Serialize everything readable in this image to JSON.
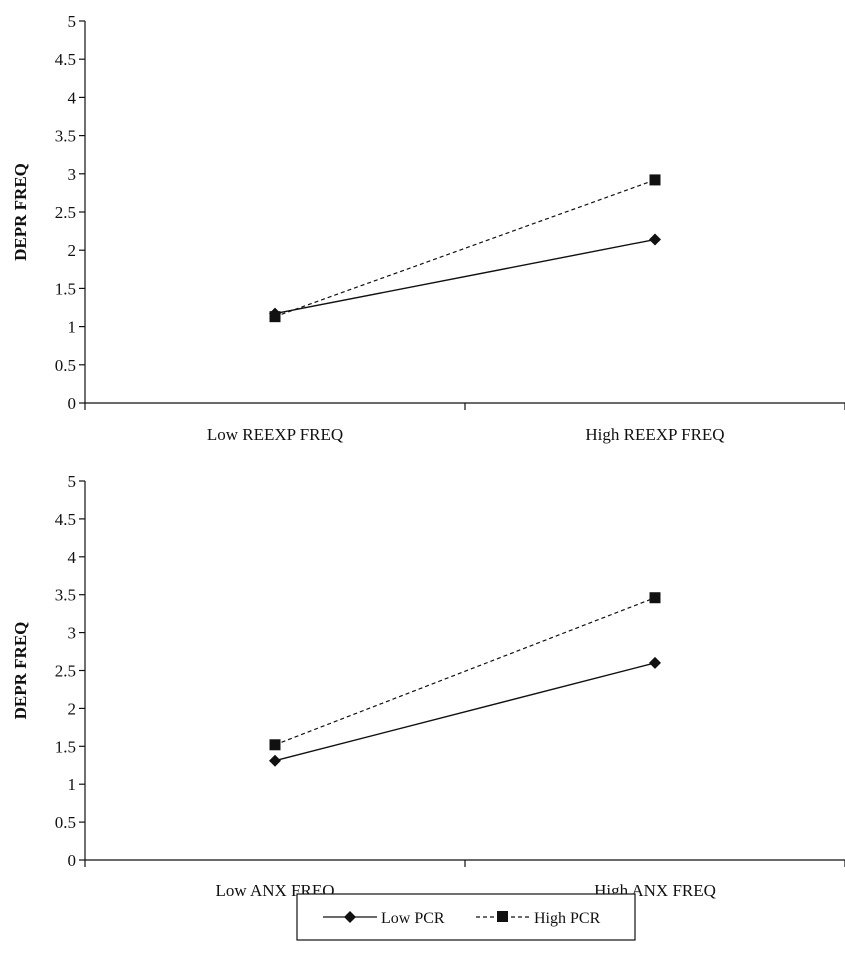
{
  "chart_data": [
    {
      "type": "line",
      "categories": [
        "Low REEXP FREQ",
        "High REEXP FREQ"
      ],
      "ylabel": "DEPR FREQ",
      "ylim": [
        0,
        5
      ],
      "yticks": [
        "0",
        "0.5",
        "1",
        "1.5",
        "2",
        "2.5",
        "3",
        "3.5",
        "4",
        "4.5",
        "5"
      ],
      "series": [
        {
          "name": "Low PCR",
          "values": [
            1.17,
            2.14
          ],
          "style": "solid",
          "marker": "diamond"
        },
        {
          "name": "High PCR",
          "values": [
            1.13,
            2.92
          ],
          "style": "dashed",
          "marker": "square"
        }
      ]
    },
    {
      "type": "line",
      "categories": [
        "Low ANX FREQ",
        "High ANX FREQ"
      ],
      "ylabel": "DEPR FREQ",
      "ylim": [
        0,
        5
      ],
      "yticks": [
        "0",
        "0.5",
        "1",
        "1.5",
        "2",
        "2.5",
        "3",
        "3.5",
        "4",
        "4.5",
        "5"
      ],
      "series": [
        {
          "name": "Low PCR",
          "values": [
            1.31,
            2.6
          ],
          "style": "solid",
          "marker": "diamond"
        },
        {
          "name": "High PCR",
          "values": [
            1.52,
            3.46
          ],
          "style": "dashed",
          "marker": "square"
        }
      ]
    }
  ],
  "legend": {
    "position": "bottom",
    "items": [
      {
        "label": "Low PCR",
        "style": "solid",
        "marker": "diamond"
      },
      {
        "label": "High PCR",
        "style": "dashed",
        "marker": "square"
      }
    ]
  },
  "colors": {
    "ink": "#111111",
    "background": "#ffffff"
  }
}
